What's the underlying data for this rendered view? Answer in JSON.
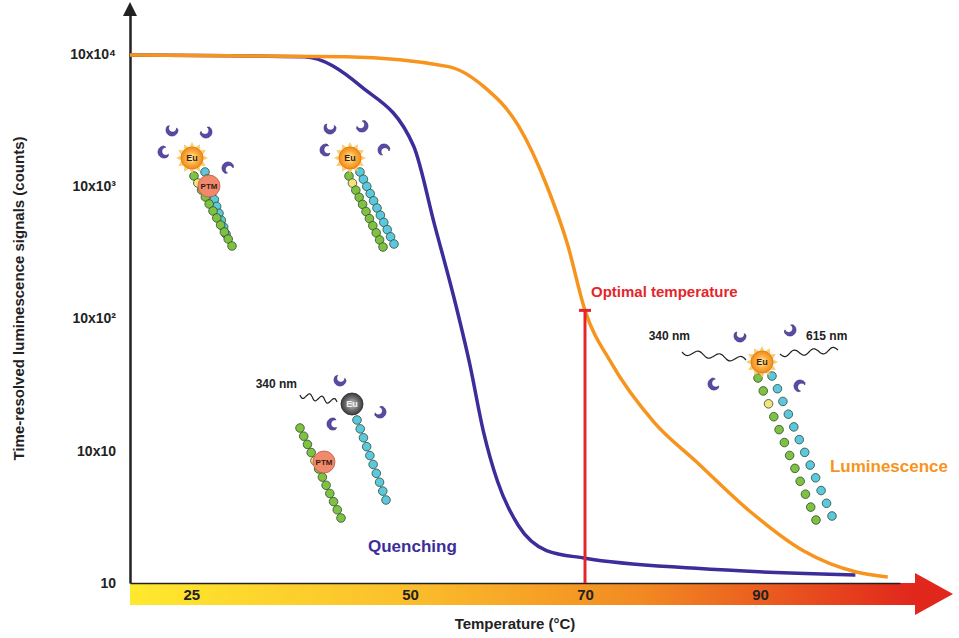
{
  "chart_data": {
    "type": "line",
    "xlabel": "Temperature (°C)",
    "ylabel": "Time-resolved luminescence signals (counts)",
    "log": "y",
    "grid": false,
    "xlim": [
      18,
      106
    ],
    "xticks": [
      25,
      50,
      70,
      90
    ],
    "ylim": [
      10,
      200000
    ],
    "yticks": [
      10,
      {
        "value": 100,
        "label": "10x10"
      },
      {
        "value": 1000,
        "label": "10x10²"
      },
      {
        "value": 10000,
        "label": "10x10³"
      },
      {
        "value": 100000,
        "label": "10x10⁴"
      }
    ],
    "series": [
      {
        "name": "Quenching",
        "color": "#3b2d9a",
        "x": [
          18,
          37.9,
          44.4,
          50.4,
          52.8,
          55.2,
          56.8,
          58.4,
          60,
          62.4,
          65.6,
          70,
          82.7,
          100.9
        ],
        "values": [
          98000,
          95000,
          56700,
          20200,
          5120,
          1290,
          461,
          139,
          58.7,
          27.1,
          17.6,
          15.4,
          12.9,
          11.5
        ]
      },
      {
        "name": "Luminescence",
        "color": "#f7941d",
        "x": [
          18,
          42.7,
          54.4,
          58.4,
          62.4,
          65.6,
          68,
          70,
          73,
          77.9,
          82.7,
          88.8,
          94.9,
          101,
          104.6
        ],
        "values": [
          98000,
          95000,
          80000,
          56700,
          28500,
          10200,
          3630,
          1150,
          461,
          164,
          82.8,
          35,
          17.6,
          12.1,
          11.1
        ]
      }
    ],
    "annotations": [
      {
        "text": "Optimal temperature",
        "x": 70,
        "color": "#e3262b"
      }
    ],
    "cartoons": [
      {
        "metal": "Eu",
        "ptm": "PTM"
      },
      {
        "metal": "Eu"
      },
      {
        "metal": "Eu",
        "ptm": "PTM",
        "excitation": "340 nm"
      },
      {
        "metal": "Eu",
        "excitation": "340 nm",
        "emission": "615 nm"
      }
    ]
  }
}
